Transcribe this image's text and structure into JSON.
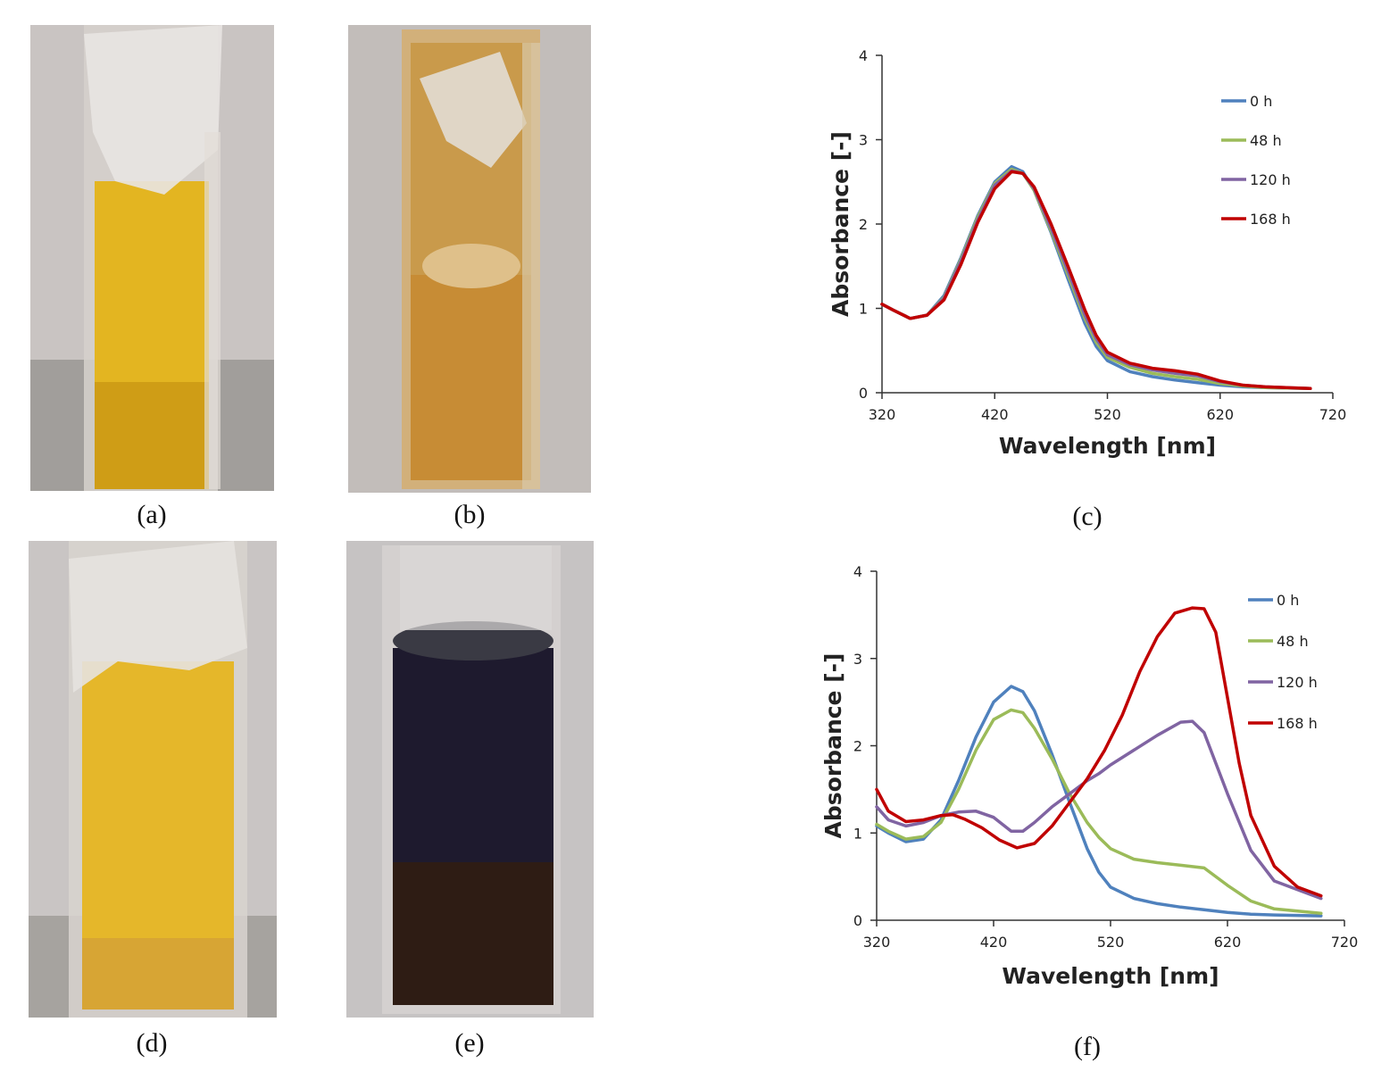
{
  "captions": {
    "a": "(a)",
    "b": "(b)",
    "c": "(c)",
    "d": "(d)",
    "e": "(e)",
    "f": "(f)"
  },
  "colors": {
    "series_0h": "#4f81bd",
    "series_48h": "#9bbb59",
    "series_120h": "#8064a2",
    "series_168h": "#c00000"
  },
  "chart_data": [
    {
      "id": "c",
      "type": "line",
      "title": "",
      "xlabel": "Wavelength [nm]",
      "ylabel": "Absorbance [-]",
      "xlim": [
        320,
        720
      ],
      "ylim": [
        0,
        4
      ],
      "xticks": [
        320,
        420,
        520,
        620,
        720
      ],
      "yticks": [
        0,
        1,
        2,
        3,
        4
      ],
      "legend_position": "top-right",
      "grid": false,
      "series": [
        {
          "name": "0 h",
          "color": "#4f81bd",
          "x": [
            320,
            330,
            345,
            360,
            375,
            390,
            405,
            420,
            435,
            445,
            455,
            470,
            485,
            500,
            510,
            520,
            540,
            560,
            580,
            600,
            620,
            640,
            660,
            700
          ],
          "y": [
            1.05,
            0.98,
            0.88,
            0.92,
            1.15,
            1.6,
            2.1,
            2.5,
            2.68,
            2.62,
            2.4,
            1.9,
            1.35,
            0.82,
            0.55,
            0.38,
            0.25,
            0.19,
            0.15,
            0.12,
            0.09,
            0.07,
            0.06,
            0.05
          ]
        },
        {
          "name": "48 h",
          "color": "#9bbb59",
          "x": [
            320,
            330,
            345,
            360,
            375,
            390,
            405,
            420,
            435,
            445,
            455,
            470,
            485,
            500,
            510,
            520,
            540,
            560,
            580,
            600,
            620,
            640,
            660,
            700
          ],
          "y": [
            1.05,
            0.98,
            0.88,
            0.92,
            1.13,
            1.58,
            2.08,
            2.48,
            2.65,
            2.6,
            2.4,
            1.92,
            1.4,
            0.88,
            0.6,
            0.42,
            0.3,
            0.23,
            0.19,
            0.16,
            0.11,
            0.08,
            0.06,
            0.05
          ]
        },
        {
          "name": "120 h",
          "color": "#8064a2",
          "x": [
            320,
            330,
            345,
            360,
            375,
            390,
            405,
            420,
            435,
            445,
            455,
            470,
            485,
            500,
            510,
            520,
            540,
            560,
            580,
            600,
            620,
            640,
            660,
            700
          ],
          "y": [
            1.05,
            0.98,
            0.88,
            0.92,
            1.12,
            1.56,
            2.05,
            2.46,
            2.63,
            2.6,
            2.42,
            1.95,
            1.44,
            0.92,
            0.64,
            0.45,
            0.33,
            0.27,
            0.23,
            0.2,
            0.13,
            0.09,
            0.07,
            0.05
          ]
        },
        {
          "name": "168 h",
          "color": "#c00000",
          "x": [
            320,
            330,
            345,
            360,
            375,
            390,
            405,
            420,
            435,
            445,
            455,
            470,
            485,
            500,
            510,
            520,
            540,
            560,
            580,
            600,
            620,
            640,
            660,
            700
          ],
          "y": [
            1.05,
            0.98,
            0.88,
            0.92,
            1.1,
            1.52,
            2.02,
            2.42,
            2.62,
            2.6,
            2.44,
            2.0,
            1.5,
            0.98,
            0.68,
            0.48,
            0.35,
            0.29,
            0.26,
            0.22,
            0.14,
            0.09,
            0.07,
            0.05
          ]
        }
      ]
    },
    {
      "id": "f",
      "type": "line",
      "title": "",
      "xlabel": "Wavelength [nm]",
      "ylabel": "Absorbance [-]",
      "xlim": [
        320,
        720
      ],
      "ylim": [
        0,
        4
      ],
      "xticks": [
        320,
        420,
        520,
        620,
        720
      ],
      "yticks": [
        0,
        1,
        2,
        3,
        4
      ],
      "legend_position": "top-right",
      "grid": false,
      "series": [
        {
          "name": "0 h",
          "color": "#4f81bd",
          "x": [
            320,
            330,
            345,
            360,
            375,
            390,
            405,
            420,
            435,
            445,
            455,
            470,
            485,
            500,
            510,
            520,
            540,
            560,
            580,
            600,
            620,
            640,
            660,
            700
          ],
          "y": [
            1.08,
            1.0,
            0.9,
            0.93,
            1.15,
            1.6,
            2.1,
            2.5,
            2.68,
            2.62,
            2.4,
            1.9,
            1.35,
            0.82,
            0.55,
            0.38,
            0.25,
            0.19,
            0.15,
            0.12,
            0.09,
            0.07,
            0.06,
            0.05
          ]
        },
        {
          "name": "48 h",
          "color": "#9bbb59",
          "x": [
            320,
            330,
            345,
            360,
            375,
            390,
            405,
            420,
            435,
            445,
            455,
            470,
            485,
            500,
            510,
            520,
            540,
            560,
            580,
            600,
            620,
            640,
            660,
            700
          ],
          "y": [
            1.1,
            1.02,
            0.93,
            0.96,
            1.12,
            1.5,
            1.95,
            2.3,
            2.41,
            2.38,
            2.2,
            1.85,
            1.45,
            1.12,
            0.95,
            0.82,
            0.7,
            0.66,
            0.63,
            0.6,
            0.4,
            0.22,
            0.13,
            0.08
          ]
        },
        {
          "name": "120 h",
          "color": "#8064a2",
          "x": [
            320,
            330,
            345,
            360,
            375,
            390,
            405,
            420,
            435,
            445,
            455,
            470,
            485,
            500,
            510,
            520,
            540,
            560,
            580,
            590,
            600,
            620,
            640,
            660,
            700
          ],
          "y": [
            1.3,
            1.15,
            1.08,
            1.12,
            1.2,
            1.24,
            1.25,
            1.18,
            1.02,
            1.02,
            1.12,
            1.3,
            1.45,
            1.6,
            1.68,
            1.78,
            1.95,
            2.12,
            2.27,
            2.28,
            2.15,
            1.45,
            0.8,
            0.45,
            0.25
          ]
        },
        {
          "name": "168 h",
          "color": "#c00000",
          "x": [
            320,
            330,
            345,
            360,
            375,
            385,
            395,
            410,
            425,
            440,
            455,
            470,
            485,
            500,
            515,
            530,
            545,
            560,
            575,
            590,
            600,
            610,
            620,
            630,
            640,
            660,
            680,
            700
          ],
          "y": [
            1.5,
            1.25,
            1.13,
            1.15,
            1.2,
            1.21,
            1.16,
            1.06,
            0.92,
            0.83,
            0.88,
            1.08,
            1.35,
            1.62,
            1.95,
            2.35,
            2.85,
            3.25,
            3.52,
            3.58,
            3.57,
            3.3,
            2.55,
            1.8,
            1.2,
            0.62,
            0.38,
            0.28
          ]
        }
      ]
    }
  ]
}
